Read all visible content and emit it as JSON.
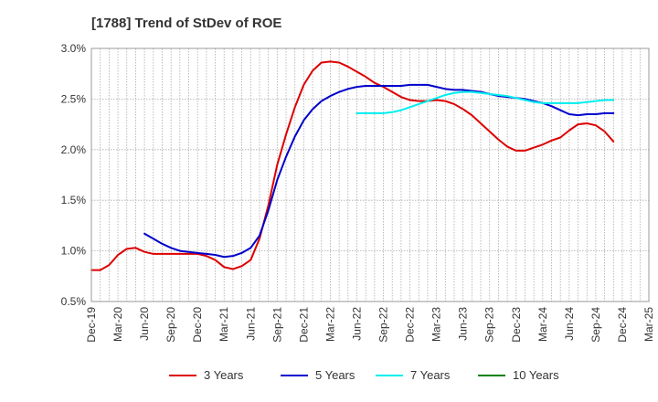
{
  "chart_data": {
    "type": "line",
    "title": "[1788]  Trend of StDev of ROE",
    "xlabel": "",
    "ylabel": "",
    "x_ticks": [
      "Dec-19",
      "Mar-20",
      "Jun-20",
      "Sep-20",
      "Dec-20",
      "Mar-21",
      "Jun-21",
      "Sep-21",
      "Dec-21",
      "Mar-22",
      "Jun-22",
      "Sep-22",
      "Dec-22",
      "Mar-23",
      "Jun-23",
      "Sep-23",
      "Dec-23",
      "Mar-24",
      "Jun-24",
      "Sep-24",
      "Dec-24",
      "Mar-25"
    ],
    "y_ticks": [
      "0.5%",
      "1.0%",
      "1.5%",
      "2.0%",
      "2.5%",
      "3.0%"
    ],
    "ylim": [
      0.5,
      3.0
    ],
    "grid": true,
    "legend_position": "bottom",
    "series": [
      {
        "name": "3 Years",
        "color": "#dd0000",
        "points": [
          [
            "Dec-19",
            0.81
          ],
          [
            "Jan-20",
            0.81
          ],
          [
            "Feb-20",
            0.86
          ],
          [
            "Mar-20",
            0.96
          ],
          [
            "Apr-20",
            1.02
          ],
          [
            "May-20",
            1.03
          ],
          [
            "Jun-20",
            0.99
          ],
          [
            "Jul-20",
            0.97
          ],
          [
            "Aug-20",
            0.97
          ],
          [
            "Sep-20",
            0.97
          ],
          [
            "Oct-20",
            0.97
          ],
          [
            "Nov-20",
            0.97
          ],
          [
            "Dec-20",
            0.97
          ],
          [
            "Jan-21",
            0.95
          ],
          [
            "Feb-21",
            0.91
          ],
          [
            "Mar-21",
            0.84
          ],
          [
            "Apr-21",
            0.82
          ],
          [
            "May-21",
            0.85
          ],
          [
            "Jun-21",
            0.91
          ],
          [
            "Jul-21",
            1.12
          ],
          [
            "Aug-21",
            1.45
          ],
          [
            "Sep-21",
            1.85
          ],
          [
            "Oct-21",
            2.15
          ],
          [
            "Nov-21",
            2.42
          ],
          [
            "Dec-21",
            2.64
          ],
          [
            "Jan-22",
            2.78
          ],
          [
            "Feb-22",
            2.86
          ],
          [
            "Mar-22",
            2.87
          ],
          [
            "Apr-22",
            2.86
          ],
          [
            "May-22",
            2.82
          ],
          [
            "Jun-22",
            2.77
          ],
          [
            "Jul-22",
            2.72
          ],
          [
            "Aug-22",
            2.66
          ],
          [
            "Sep-22",
            2.62
          ],
          [
            "Oct-22",
            2.57
          ],
          [
            "Nov-22",
            2.52
          ],
          [
            "Dec-22",
            2.49
          ],
          [
            "Jan-23",
            2.48
          ],
          [
            "Feb-23",
            2.48
          ],
          [
            "Mar-23",
            2.49
          ],
          [
            "Apr-23",
            2.48
          ],
          [
            "May-23",
            2.45
          ],
          [
            "Jun-23",
            2.4
          ],
          [
            "Jul-23",
            2.34
          ],
          [
            "Aug-23",
            2.26
          ],
          [
            "Sep-23",
            2.18
          ],
          [
            "Oct-23",
            2.1
          ],
          [
            "Nov-23",
            2.03
          ],
          [
            "Dec-23",
            1.99
          ],
          [
            "Jan-24",
            1.99
          ],
          [
            "Feb-24",
            2.02
          ],
          [
            "Mar-24",
            2.05
          ],
          [
            "Apr-24",
            2.09
          ],
          [
            "May-24",
            2.12
          ],
          [
            "Jun-24",
            2.19
          ],
          [
            "Jul-24",
            2.25
          ],
          [
            "Aug-24",
            2.26
          ],
          [
            "Sep-24",
            2.24
          ],
          [
            "Oct-24",
            2.18
          ],
          [
            "Nov-24",
            2.08
          ]
        ]
      },
      {
        "name": "5 Years",
        "color": "#0000cc",
        "points": [
          [
            "Jun-20",
            1.17
          ],
          [
            "Jul-20",
            1.12
          ],
          [
            "Aug-20",
            1.07
          ],
          [
            "Sep-20",
            1.03
          ],
          [
            "Oct-20",
            1.0
          ],
          [
            "Nov-20",
            0.99
          ],
          [
            "Dec-20",
            0.98
          ],
          [
            "Jan-21",
            0.97
          ],
          [
            "Feb-21",
            0.96
          ],
          [
            "Mar-21",
            0.94
          ],
          [
            "Apr-21",
            0.95
          ],
          [
            "May-21",
            0.98
          ],
          [
            "Jun-21",
            1.03
          ],
          [
            "Jul-21",
            1.15
          ],
          [
            "Aug-21",
            1.4
          ],
          [
            "Sep-21",
            1.7
          ],
          [
            "Oct-21",
            1.93
          ],
          [
            "Nov-21",
            2.13
          ],
          [
            "Dec-21",
            2.29
          ],
          [
            "Jan-22",
            2.4
          ],
          [
            "Feb-22",
            2.48
          ],
          [
            "Mar-22",
            2.53
          ],
          [
            "Apr-22",
            2.57
          ],
          [
            "May-22",
            2.6
          ],
          [
            "Jun-22",
            2.62
          ],
          [
            "Jul-22",
            2.63
          ],
          [
            "Aug-22",
            2.63
          ],
          [
            "Sep-22",
            2.63
          ],
          [
            "Oct-22",
            2.63
          ],
          [
            "Nov-22",
            2.63
          ],
          [
            "Dec-22",
            2.64
          ],
          [
            "Jan-23",
            2.64
          ],
          [
            "Feb-23",
            2.64
          ],
          [
            "Mar-23",
            2.62
          ],
          [
            "Apr-23",
            2.6
          ],
          [
            "May-23",
            2.59
          ],
          [
            "Jun-23",
            2.59
          ],
          [
            "Jul-23",
            2.58
          ],
          [
            "Aug-23",
            2.57
          ],
          [
            "Sep-23",
            2.55
          ],
          [
            "Oct-23",
            2.53
          ],
          [
            "Nov-23",
            2.52
          ],
          [
            "Dec-23",
            2.51
          ],
          [
            "Jan-24",
            2.5
          ],
          [
            "Feb-24",
            2.48
          ],
          [
            "Mar-24",
            2.46
          ],
          [
            "Apr-24",
            2.43
          ],
          [
            "May-24",
            2.39
          ],
          [
            "Jun-24",
            2.35
          ],
          [
            "Jul-24",
            2.34
          ],
          [
            "Aug-24",
            2.35
          ],
          [
            "Sep-24",
            2.35
          ],
          [
            "Oct-24",
            2.36
          ],
          [
            "Nov-24",
            2.36
          ]
        ]
      },
      {
        "name": "7 Years",
        "color": "#00eeee",
        "points": [
          [
            "Jun-22",
            2.36
          ],
          [
            "Jul-22",
            2.36
          ],
          [
            "Aug-22",
            2.36
          ],
          [
            "Sep-22",
            2.36
          ],
          [
            "Oct-22",
            2.37
          ],
          [
            "Nov-22",
            2.39
          ],
          [
            "Dec-22",
            2.42
          ],
          [
            "Jan-23",
            2.45
          ],
          [
            "Feb-23",
            2.48
          ],
          [
            "Mar-23",
            2.51
          ],
          [
            "Apr-23",
            2.54
          ],
          [
            "May-23",
            2.56
          ],
          [
            "Jun-23",
            2.57
          ],
          [
            "Jul-23",
            2.57
          ],
          [
            "Aug-23",
            2.56
          ],
          [
            "Sep-23",
            2.55
          ],
          [
            "Oct-23",
            2.54
          ],
          [
            "Nov-23",
            2.53
          ],
          [
            "Dec-23",
            2.51
          ],
          [
            "Jan-24",
            2.49
          ],
          [
            "Feb-24",
            2.47
          ],
          [
            "Mar-24",
            2.46
          ],
          [
            "Apr-24",
            2.46
          ],
          [
            "May-24",
            2.46
          ],
          [
            "Jun-24",
            2.46
          ],
          [
            "Jul-24",
            2.46
          ],
          [
            "Aug-24",
            2.47
          ],
          [
            "Sep-24",
            2.48
          ],
          [
            "Oct-24",
            2.49
          ],
          [
            "Nov-24",
            2.49
          ]
        ]
      },
      {
        "name": "10 Years",
        "color": "#008000",
        "points": []
      }
    ]
  }
}
